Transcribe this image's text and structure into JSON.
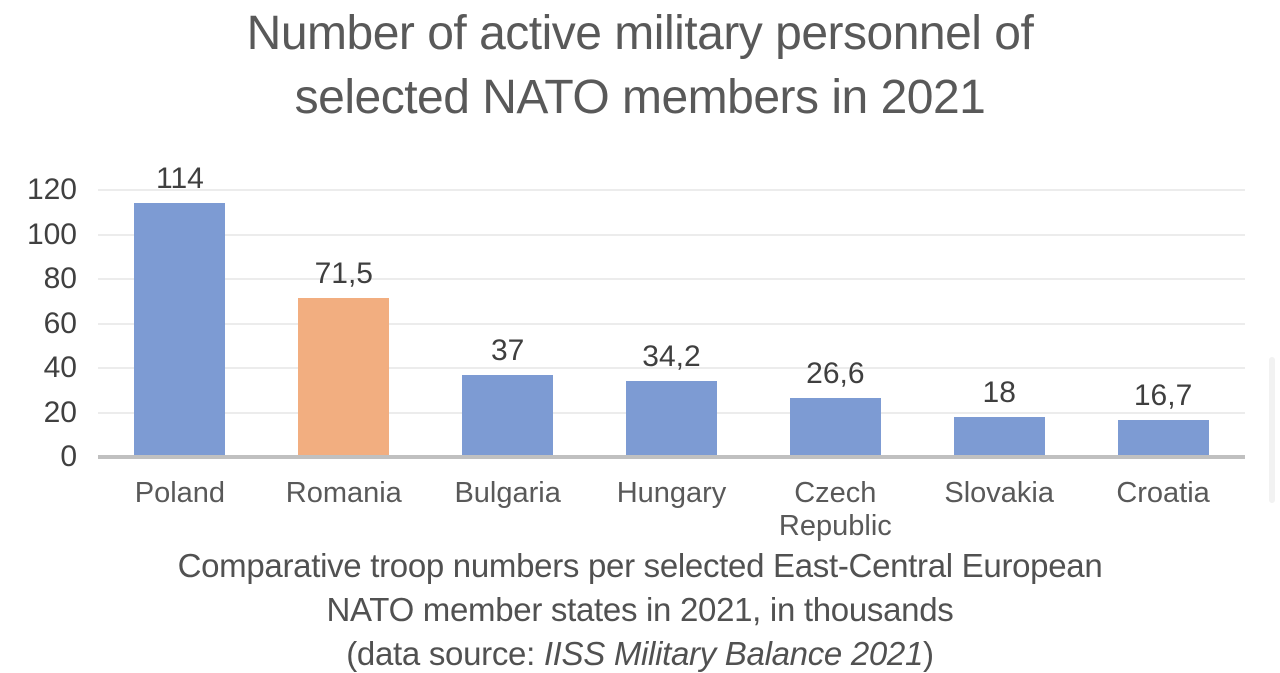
{
  "title": {
    "line1": "Number of active military personnel of",
    "line2": "selected NATO members in 2021"
  },
  "chart_data": {
    "type": "bar",
    "title": "Number of active military personnel of selected NATO members in 2021",
    "categories": [
      "Poland",
      "Romania",
      "Bulgaria",
      "Hungary",
      "Czech Republic",
      "Slovakia",
      "Croatia"
    ],
    "values": [
      114,
      71.5,
      37,
      34.2,
      26.6,
      18,
      16.7
    ],
    "value_labels": [
      "114",
      "71,5",
      "37",
      "34,2",
      "26,6",
      "18",
      "16,7"
    ],
    "bar_colors": [
      "#7d9bd3",
      "#f2ae80",
      "#7d9bd3",
      "#7d9bd3",
      "#7d9bd3",
      "#7d9bd3",
      "#7d9bd3"
    ],
    "xlabel": "",
    "ylabel": "",
    "units": "thousands",
    "ylim": [
      0,
      120
    ],
    "yticks": [
      0,
      20,
      40,
      60,
      80,
      100,
      120
    ],
    "grid": true,
    "legend_position": "none"
  },
  "caption": {
    "line1": "Comparative troop numbers per selected East-Central European",
    "line2": "NATO member states in 2021, in thousands",
    "line3_prefix": "(data source: ",
    "line3_italic": "IISS Military Balance 2021",
    "line3_suffix": ")"
  },
  "colors": {
    "bar_default": "#7d9bd3",
    "bar_highlight": "#f2ae80",
    "gridline": "#ececec",
    "baseline": "#c0c0c0",
    "title_text": "#595959",
    "label_text": "#404040"
  }
}
